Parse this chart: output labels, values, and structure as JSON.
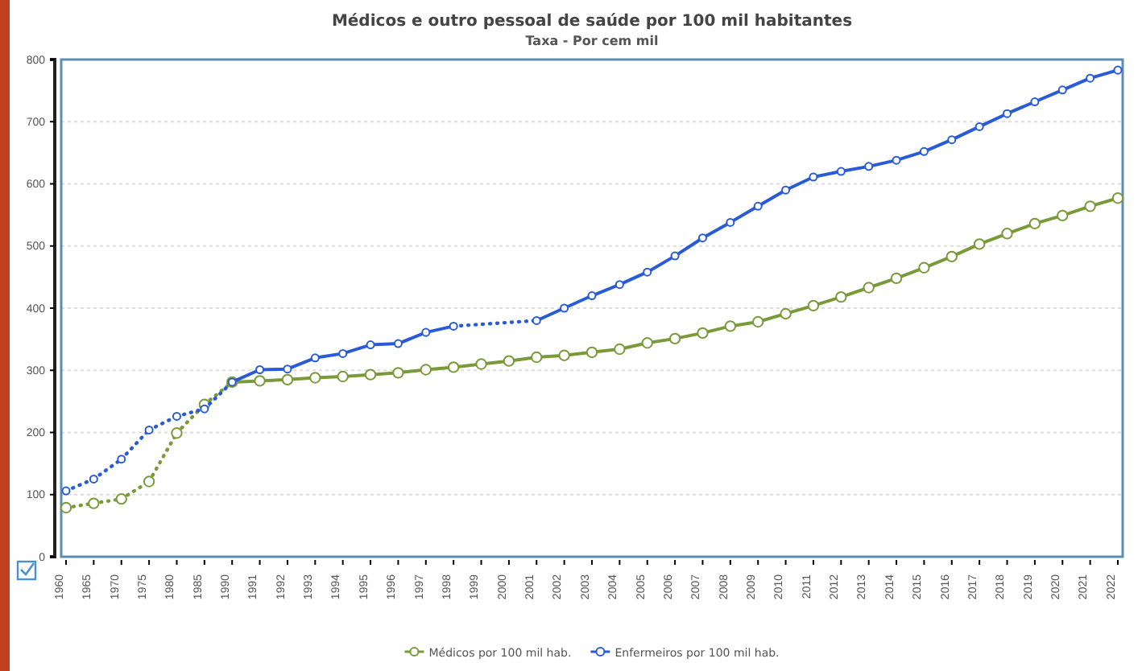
{
  "chart_data": {
    "type": "line",
    "title": "Médicos e outro pessoal de saúde por 100 mil habitantes",
    "subtitle": "Taxa - Por cem mil",
    "categories": [
      "1960",
      "1965",
      "1970",
      "1975",
      "1980",
      "1985",
      "1990",
      "1991",
      "1992",
      "1993",
      "1994",
      "1995",
      "1996",
      "1997",
      "1998",
      "1999",
      "2000",
      "2001",
      "2002",
      "2003",
      "2004",
      "2005",
      "2006",
      "2007",
      "2008",
      "2009",
      "2010",
      "2011",
      "2012",
      "2013",
      "2014",
      "2015",
      "2016",
      "2017",
      "2018",
      "2019",
      "2020",
      "2021",
      "2022"
    ],
    "series": [
      {
        "name": "Médicos por 100 mil hab.",
        "color": "#7a9a3a",
        "values": [
          79,
          86,
          93,
          121,
          199,
          245,
          281,
          283,
          285,
          288,
          290,
          293,
          296,
          301,
          305,
          310,
          315,
          321,
          324,
          329,
          334,
          344,
          351,
          360,
          371,
          378,
          391,
          404,
          418,
          433,
          448,
          465,
          483,
          503,
          520,
          536,
          549,
          564,
          577
        ]
      },
      {
        "name": "Enfermeiros por 100 mil hab.",
        "color": "#2a5bd7",
        "values": [
          106,
          125,
          157,
          204,
          226,
          238,
          281,
          301,
          302,
          320,
          327,
          341,
          343,
          361,
          371,
          null,
          null,
          380,
          400,
          420,
          438,
          458,
          484,
          513,
          538,
          564,
          590,
          611,
          620,
          628,
          638,
          652,
          671,
          692,
          713,
          732,
          751,
          770,
          783
        ]
      }
    ],
    "ylim": [
      0,
      800
    ],
    "yticks": [
      0,
      100,
      200,
      300,
      400,
      500,
      600,
      700,
      800
    ],
    "grid": "y",
    "legend": "bottom",
    "marker": "circle",
    "line_style": "solid"
  }
}
